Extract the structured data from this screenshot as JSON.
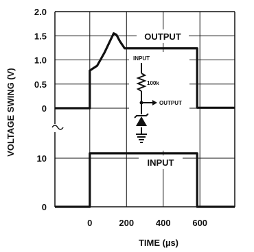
{
  "chart_data": {
    "type": "line",
    "title": "",
    "xlabel": "TIME (µs)",
    "ylabel": "VOLTAGE SWING (V)",
    "x_ticks": [
      "0",
      "200",
      "400",
      "600"
    ],
    "xlim": [
      -190,
      790
    ],
    "grid": true,
    "panels": [
      {
        "name": "output",
        "ylim": [
          0,
          2.0
        ],
        "y_ticks": [
          "0",
          "0.5",
          "1.0",
          "1.5",
          "2.0"
        ],
        "label": "OUTPUT",
        "points": [
          [
            -190,
            0
          ],
          [
            0,
            0
          ],
          [
            0,
            0.78
          ],
          [
            40,
            0.88
          ],
          [
            80,
            1.15
          ],
          [
            130,
            1.55
          ],
          [
            145,
            1.52
          ],
          [
            165,
            1.38
          ],
          [
            190,
            1.24
          ],
          [
            585,
            1.24
          ],
          [
            585,
            0.01
          ],
          [
            790,
            0.01
          ]
        ]
      },
      {
        "name": "input",
        "ylim": [
          0,
          12
        ],
        "y_ticks": [
          "0",
          "10"
        ],
        "label": "INPUT",
        "points": [
          [
            -190,
            0
          ],
          [
            0,
            0
          ],
          [
            0,
            11
          ],
          [
            585,
            11
          ],
          [
            585,
            0
          ],
          [
            790,
            0
          ]
        ]
      }
    ],
    "schematic": {
      "input_label": "INPUT",
      "resistor_label": "100k",
      "output_label": "OUTPUT"
    }
  }
}
